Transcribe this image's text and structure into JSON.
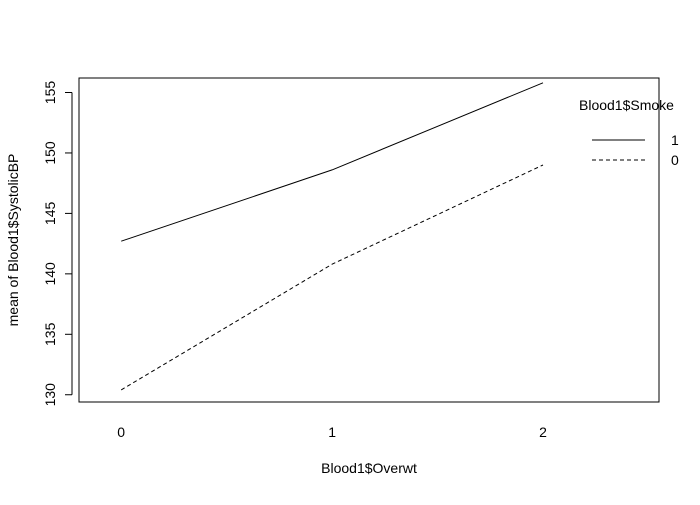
{
  "chart_data": {
    "type": "line",
    "title": "",
    "xlabel": "Blood1$Overwt",
    "ylabel": "mean of  Blood1$SystolicBP",
    "categories": [
      "0",
      "1",
      "2"
    ],
    "x": [
      0,
      1,
      2
    ],
    "xlim": [
      -0.2,
      2.55
    ],
    "ylim": [
      129.4,
      156.2
    ],
    "xticks": [
      "0",
      "1",
      "2"
    ],
    "yticks": [
      "130",
      "135",
      "140",
      "145",
      "150",
      "155"
    ],
    "grid": false,
    "legend": {
      "title": "Blood1$Smoke",
      "position": "top-right",
      "entries": [
        "1",
        "0"
      ]
    },
    "series": [
      {
        "name": "1",
        "values": [
          142.7,
          148.6,
          155.8
        ],
        "line_style": "solid",
        "color": "#000000"
      },
      {
        "name": "0",
        "values": [
          130.4,
          140.8,
          149.0
        ],
        "line_style": "dashed",
        "color": "#000000"
      }
    ]
  }
}
